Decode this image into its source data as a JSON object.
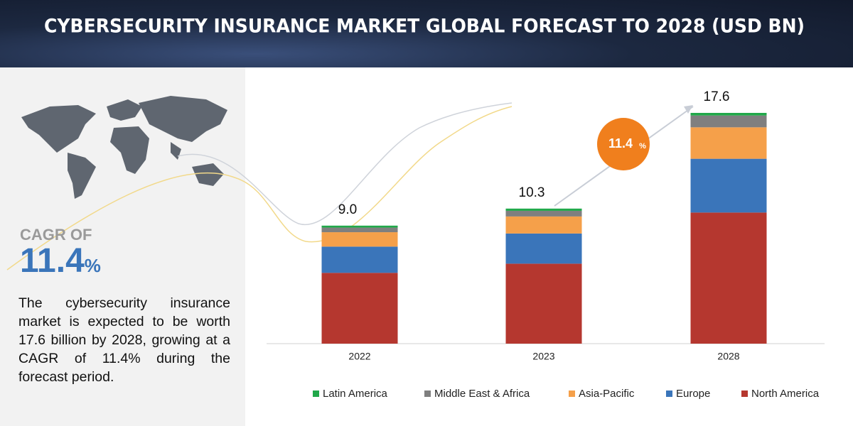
{
  "chart_data": {
    "type": "stacked-bar",
    "title": "CYBERSECURITY INSURANCE MARKET GLOBAL FORECAST TO 2028 (USD BN)",
    "categories": [
      "2022",
      "2023",
      "2028"
    ],
    "series": [
      {
        "name": "Latin America",
        "color": "#21a84a",
        "values": [
          0.15,
          0.17,
          0.2
        ]
      },
      {
        "name": "Middle East & Africa",
        "color": "#7f7f7f",
        "values": [
          0.35,
          0.43,
          0.9
        ]
      },
      {
        "name": "Asia-Pacific",
        "color": "#f5a04a",
        "values": [
          1.1,
          1.3,
          2.4
        ]
      },
      {
        "name": "Europe",
        "color": "#3a75ba",
        "values": [
          2.0,
          2.3,
          4.1
        ]
      },
      {
        "name": "North America",
        "color": "#b5372f",
        "values": [
          5.4,
          6.1,
          10.0
        ]
      }
    ],
    "totals": {
      "values": [
        9,
        10.3,
        17.6
      ],
      "value_labels": [
        "9.0",
        "10.3",
        "17.6"
      ]
    },
    "cagr": {
      "label": "CAGR OF",
      "value": "11.4",
      "unit": "%"
    },
    "description": "The cybersecurity insurance market is expected to be worth 17.6 billion by 2028, growing at a CAGR of 11.4% during the forecast period."
  }
}
